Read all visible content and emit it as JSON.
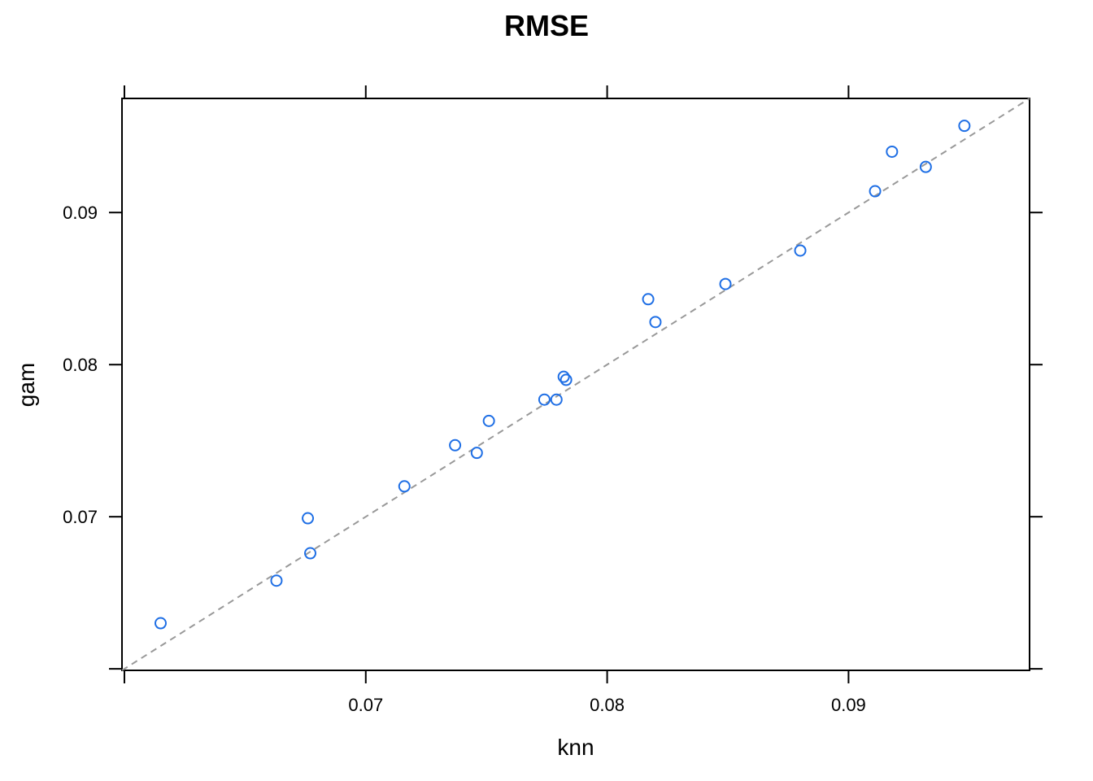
{
  "chart_data": {
    "type": "scatter",
    "title": "RMSE",
    "xlabel": "knn",
    "ylabel": "gam",
    "xlim": [
      0.0599,
      0.0975
    ],
    "ylim": [
      0.0599,
      0.0975
    ],
    "x_ticks": [
      0.06,
      0.07,
      0.08,
      0.09
    ],
    "y_ticks": [
      0.06,
      0.07,
      0.08,
      0.09
    ],
    "x_tick_labels": [
      "",
      "0.07",
      "0.08",
      "0.09"
    ],
    "y_tick_labels": [
      "",
      "0.07",
      "0.08",
      "0.09"
    ],
    "reference_line": "y = x",
    "grid": false,
    "point_color": "#1f6fe5",
    "reference_line_color": "#999999",
    "x": [
      0.0615,
      0.0663,
      0.0676,
      0.0677,
      0.0716,
      0.0737,
      0.0746,
      0.0751,
      0.0774,
      0.0779,
      0.0782,
      0.0783,
      0.0817,
      0.082,
      0.0849,
      0.088,
      0.0911,
      0.0918,
      0.0932,
      0.0948
    ],
    "y": [
      0.063,
      0.0658,
      0.0699,
      0.0676,
      0.072,
      0.0747,
      0.0742,
      0.0763,
      0.0777,
      0.0777,
      0.0792,
      0.079,
      0.0843,
      0.0828,
      0.0853,
      0.0875,
      0.0914,
      0.094,
      0.093,
      0.0957
    ]
  }
}
